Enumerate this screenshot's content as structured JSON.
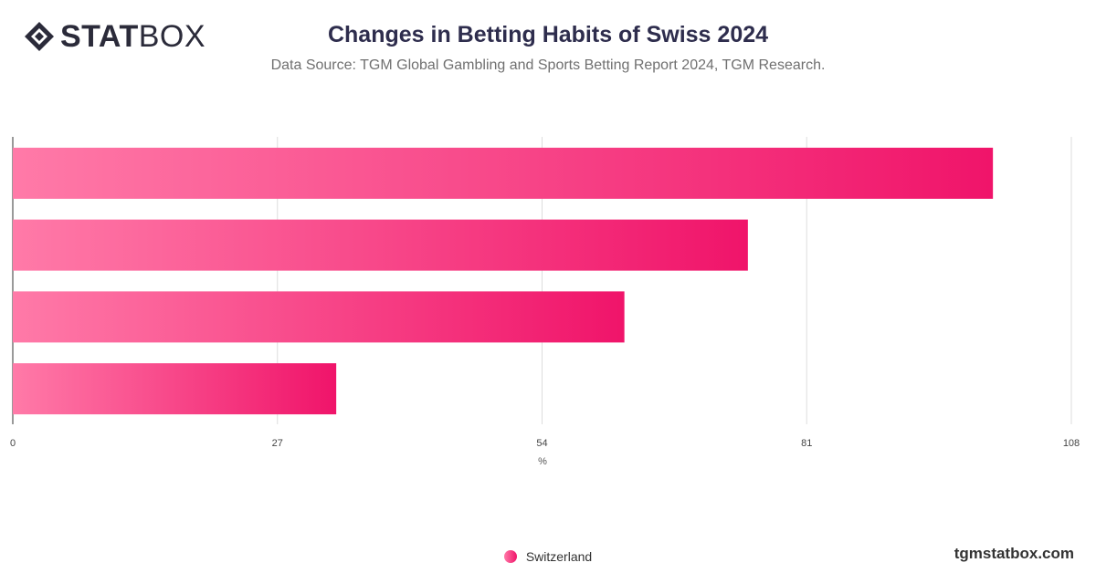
{
  "brand": {
    "logo_bold": "STAT",
    "logo_light": "BOX",
    "site": "tgmstatbox.com"
  },
  "chart_data": {
    "type": "bar",
    "orientation": "horizontal",
    "title": "Changes in Betting Habits of Swiss 2024",
    "subtitle": "Data Source: TGM Global Gambling and Sports Betting Report 2024, TGM Research.",
    "xlabel": "%",
    "xlim": [
      0,
      108
    ],
    "xticks": [
      0,
      27,
      54,
      81,
      108
    ],
    "categories": [
      "",
      "",
      "",
      ""
    ],
    "series": [
      {
        "name": "Switzerland",
        "values": [
          100,
          75,
          62.4,
          33
        ]
      }
    ],
    "grid": true,
    "legend_position": "bottom-center",
    "colors": {
      "bar_start": "#ff7aa8",
      "bar_end": "#f0146a",
      "grid": "#dddddd",
      "axis": "#333333"
    }
  }
}
